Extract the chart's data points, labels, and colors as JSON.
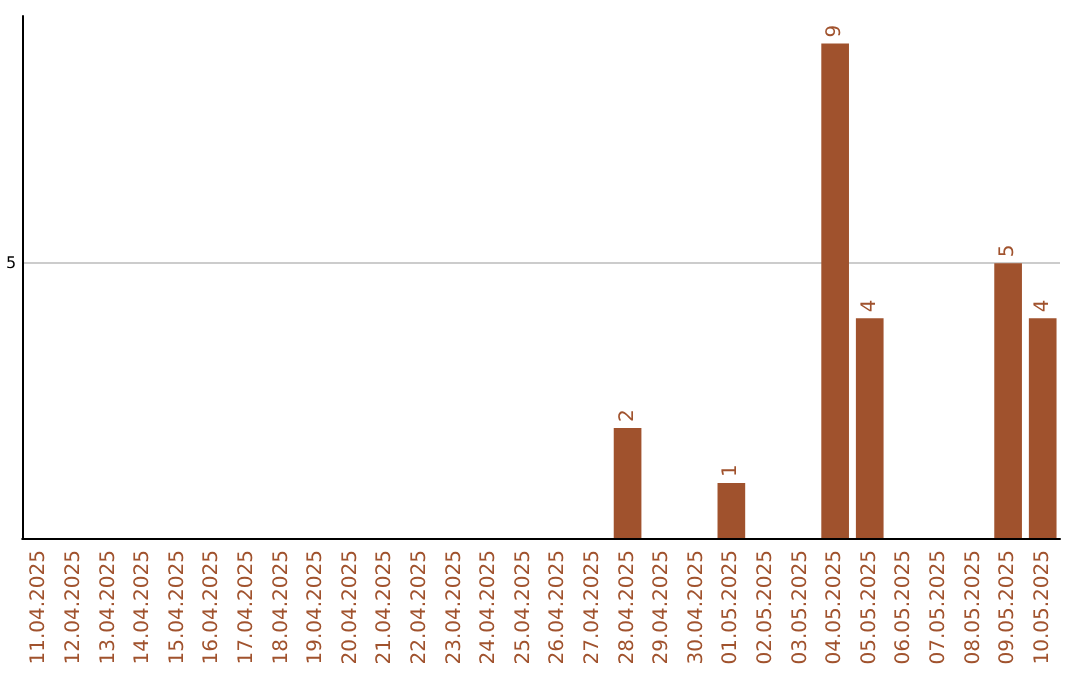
{
  "chart_data": {
    "type": "bar",
    "categories": [
      "11.04.2025",
      "12.04.2025",
      "13.04.2025",
      "14.04.2025",
      "15.04.2025",
      "16.04.2025",
      "17.04.2025",
      "18.04.2025",
      "19.04.2025",
      "20.04.2025",
      "21.04.2025",
      "22.04.2025",
      "23.04.2025",
      "24.04.2025",
      "25.04.2025",
      "26.04.2025",
      "27.04.2025",
      "28.04.2025",
      "29.04.2025",
      "30.04.2025",
      "01.05.2025",
      "02.05.2025",
      "03.05.2025",
      "04.05.2025",
      "05.05.2025",
      "06.05.2025",
      "07.05.2025",
      "08.05.2025",
      "09.05.2025",
      "10.05.2025"
    ],
    "values": [
      null,
      null,
      null,
      null,
      null,
      null,
      null,
      null,
      null,
      null,
      null,
      null,
      null,
      null,
      null,
      null,
      null,
      2,
      null,
      null,
      1,
      null,
      null,
      9,
      4,
      null,
      null,
      null,
      5,
      4
    ],
    "data_labels": true,
    "color": "#a0522d",
    "ylim": [
      0,
      9.5
    ],
    "yticks": [
      5
    ],
    "grid": "y"
  }
}
